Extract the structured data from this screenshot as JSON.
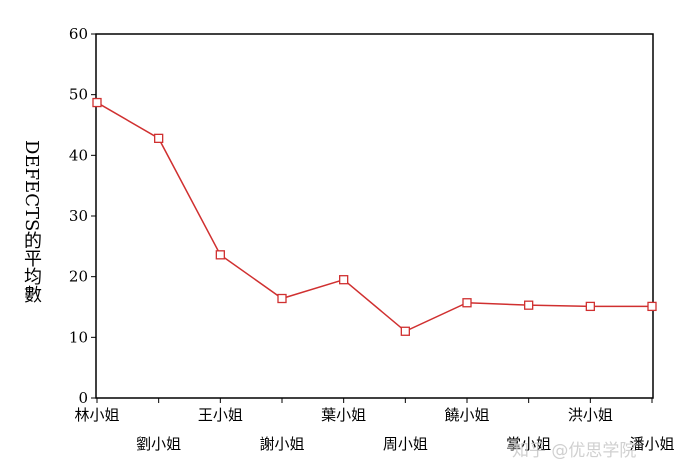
{
  "chart_data": {
    "type": "line",
    "y_label": "DEFECTS的平均數",
    "categories": [
      "林小姐",
      "劉小姐",
      "王小姐",
      "謝小姐",
      "葉小姐",
      "周小姐",
      "饒小姐",
      "掌小姐",
      "洪小姐",
      "潘小姐"
    ],
    "series": [
      {
        "name": "DEFECTS",
        "color": "#d03030",
        "values": [
          48.7,
          42.8,
          23.6,
          16.4,
          19.5,
          11.0,
          15.7,
          15.3,
          15.1,
          15.1
        ]
      }
    ],
    "ylim": [
      0,
      60
    ],
    "yticks": [
      0,
      10,
      20,
      30,
      40,
      50,
      60
    ]
  },
  "watermark": "知乎 @优思学院"
}
